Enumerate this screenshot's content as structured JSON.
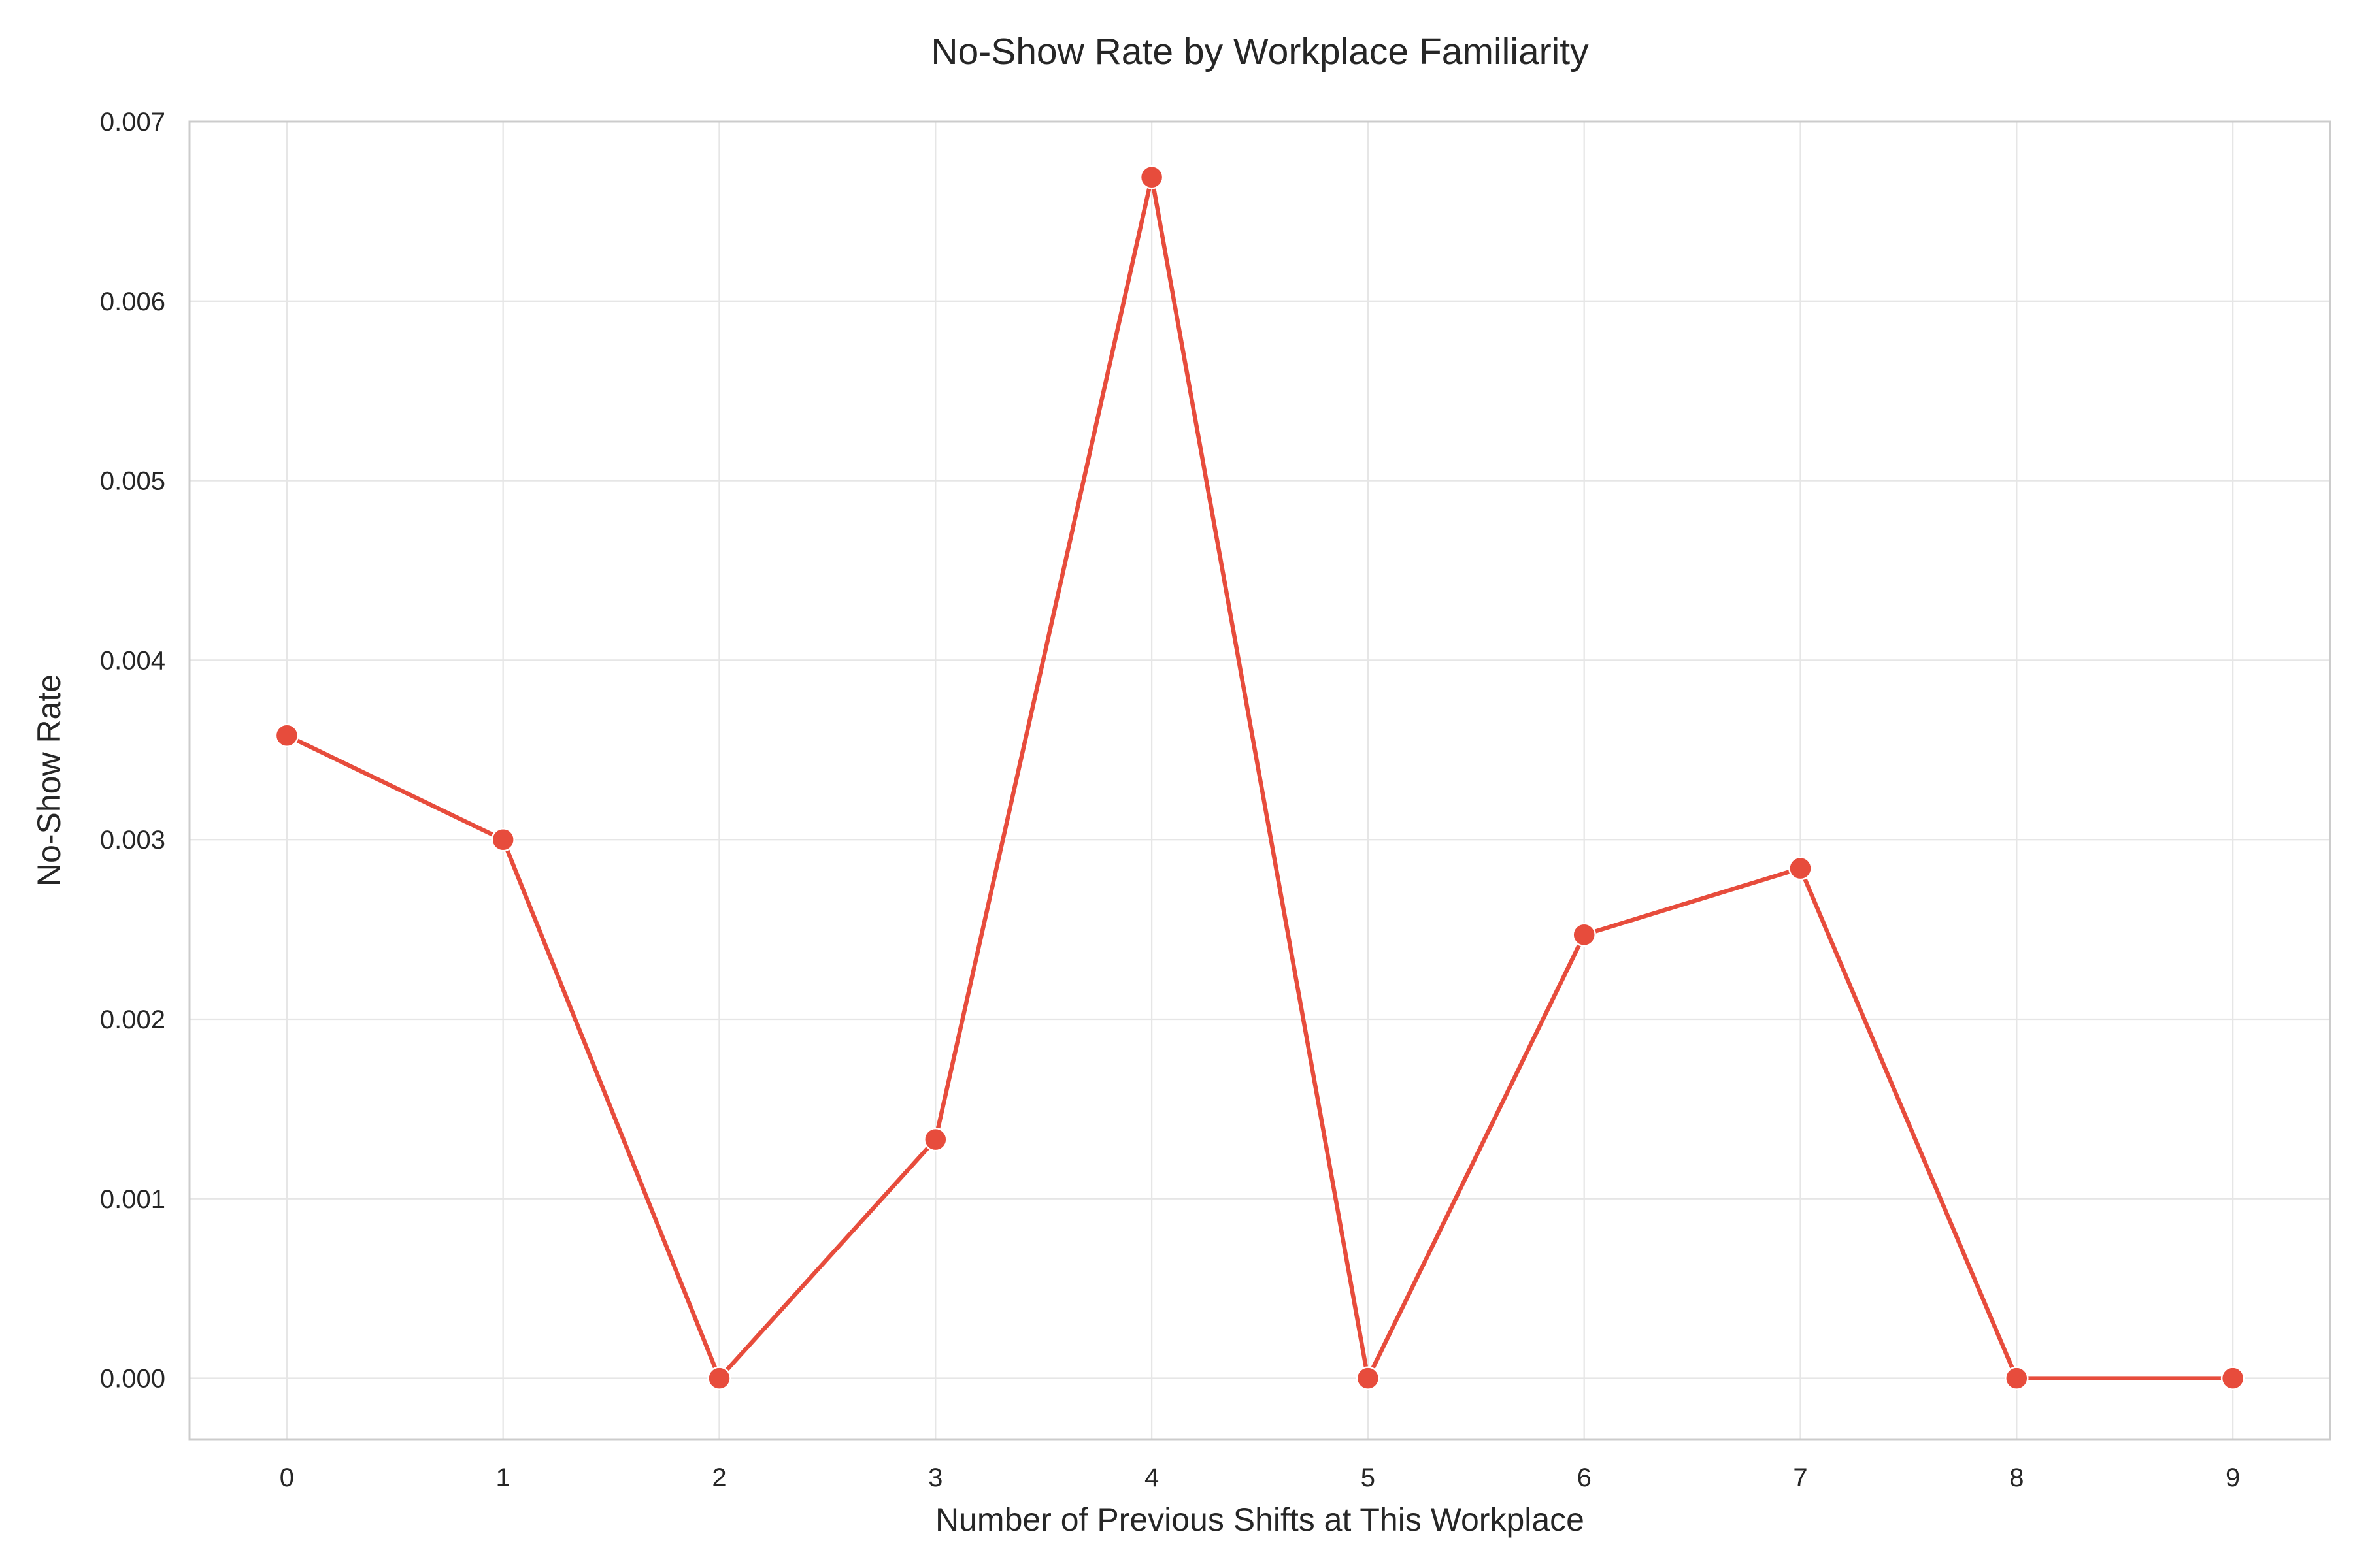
{
  "chart_data": {
    "type": "line",
    "title": "No-Show Rate by Workplace Familiarity",
    "xlabel": "Number of Previous Shifts at This Workplace",
    "ylabel": "No-Show Rate",
    "x": [
      0,
      1,
      2,
      3,
      4,
      5,
      6,
      7,
      8,
      9
    ],
    "xlim": [
      -0.45,
      9.45
    ],
    "ylim": [
      -0.00034,
      0.007
    ],
    "x_ticks": [
      "0",
      "1",
      "2",
      "3",
      "4",
      "5",
      "6",
      "7",
      "8",
      "9"
    ],
    "y_ticks": [
      "0.000",
      "0.001",
      "0.002",
      "0.003",
      "0.004",
      "0.005",
      "0.006",
      "0.007"
    ],
    "grid": true,
    "series": [
      {
        "values": [
          0.00358,
          0.003,
          0.0,
          0.00133,
          0.00669,
          0.0,
          0.00247,
          0.00284,
          0.0,
          0.0
        ],
        "color": "#e74c3c",
        "marker": "circle"
      }
    ]
  }
}
